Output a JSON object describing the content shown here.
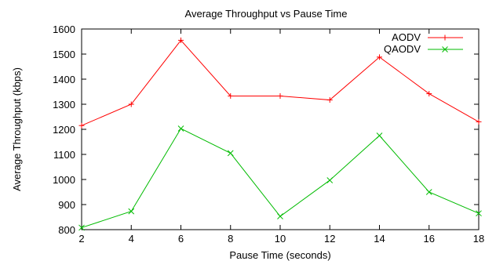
{
  "chart_data": {
    "type": "line",
    "title": "Average Throughput vs Pause Time",
    "xlabel": "Pause Time (seconds)",
    "ylabel": "Average Throughput (kbps)",
    "x": [
      2,
      4,
      6,
      8,
      10,
      12,
      14,
      16,
      18
    ],
    "xlim": [
      2,
      18
    ],
    "ylim": [
      800,
      1600
    ],
    "xticks": [
      "2",
      "4",
      "6",
      "8",
      "10",
      "12",
      "14",
      "16",
      "18"
    ],
    "yticks": [
      "800",
      "900",
      "1000",
      "1100",
      "1200",
      "1300",
      "1400",
      "1500",
      "1600"
    ],
    "legend_position": "top-right",
    "grid": false,
    "series": [
      {
        "name": "AODV",
        "color": "#ff0000",
        "marker": "plus",
        "values": [
          1215,
          1300,
          1555,
          1333,
          1333,
          1317,
          1488,
          1342,
          1230
        ]
      },
      {
        "name": "QAODV",
        "color": "#00bb00",
        "marker": "cross",
        "values": [
          808,
          873,
          1203,
          1105,
          853,
          997,
          1175,
          950,
          865
        ]
      }
    ]
  }
}
